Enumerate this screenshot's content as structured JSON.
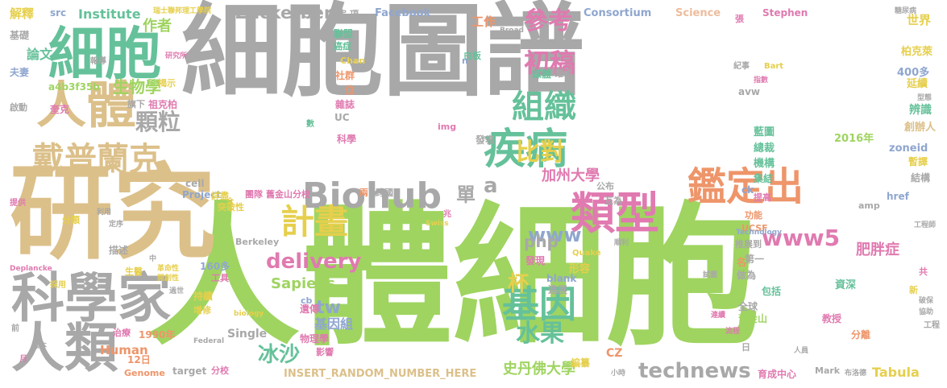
{
  "word_cloud": {
    "palette": {
      "gray": "#a8a8a8",
      "lime": "#9fd460",
      "teal": "#65c19a",
      "tan": "#dcc08a",
      "pink": "#e07ab0",
      "orange": "#ee956a",
      "yellow": "#e6cf4c",
      "blue": "#8fa6cf",
      "lightgreen": "#bfe08f",
      "peach": "#eebc9c"
    },
    "words": [
      {
        "text": "細胞圖譜",
        "color": "#a8a8a8"
      },
      {
        "text": "人體細胞",
        "color": "#9fd460"
      },
      {
        "text": "研究",
        "color": "#dcc08a"
      },
      {
        "text": "細胞",
        "color": "#65c19a"
      },
      {
        "text": "人體",
        "color": "#dcc08a"
      },
      {
        "text": "科學家",
        "color": "#a8a8a8"
      },
      {
        "text": "人類",
        "color": "#a8a8a8"
      },
      {
        "text": "疾病",
        "color": "#65c19a"
      },
      {
        "text": "類型",
        "color": "#e07ab0"
      },
      {
        "text": "Biohub",
        "color": "#a8a8a8"
      },
      {
        "text": "鑑定出",
        "color": "#ee956a"
      },
      {
        "text": "戴普蘭克",
        "color": "#dcc08a"
      },
      {
        "text": "計畫",
        "color": "#e6cf4c"
      },
      {
        "text": "基因",
        "color": "#65c19a"
      },
      {
        "text": "組織",
        "color": "#65c19a"
      },
      {
        "text": "初稿",
        "color": "#e07ab0"
      },
      {
        "text": "參考",
        "color": "#e07ab0"
      },
      {
        "text": "比對",
        "color": "#e6cf4c"
      },
      {
        "text": "顆粒",
        "color": "#a8a8a8"
      },
      {
        "text": "www5",
        "color": "#e07ab0"
      },
      {
        "text": "www",
        "color": "#8fa6cf"
      },
      {
        "text": "冰沙",
        "color": "#65c19a"
      },
      {
        "text": "水果",
        "color": "#65c19a"
      },
      {
        "text": "delivery",
        "color": "#e07ab0"
      },
      {
        "text": "technews",
        "color": "#a8a8a8"
      },
      {
        "text": "Zuckerberg",
        "color": "#a8a8a8"
      },
      {
        "text": "生物學",
        "color": "#9fd460"
      },
      {
        "text": "單",
        "color": "#a8a8a8"
      },
      {
        "text": "a",
        "color": "#a8a8a8"
      },
      {
        "text": "tw",
        "color": "#8fa6cf"
      },
      {
        "text": "杯",
        "color": "#e6cf4c"
      },
      {
        "text": "php",
        "color": "#a8a8a8"
      },
      {
        "text": "肥胖症",
        "color": "#e07ab0"
      },
      {
        "text": "史丹佛大學",
        "color": "#9fd460"
      },
      {
        "text": "加州大學",
        "color": "#e07ab0"
      },
      {
        "text": "Sapiens",
        "color": "#9fd460"
      },
      {
        "text": "基因組",
        "color": "#8fa6cf"
      },
      {
        "text": "Human",
        "color": "#ee956a"
      },
      {
        "text": "Tabula",
        "color": "#e6cf4c"
      },
      {
        "text": "Institute",
        "color": "#65c19a"
      },
      {
        "text": "論文",
        "color": "#65c19a"
      },
      {
        "text": "作者",
        "color": "#9fd460"
      },
      {
        "text": "解釋",
        "color": "#e6cf4c"
      },
      {
        "text": "工作",
        "color": "#ee956a"
      },
      {
        "text": "世界",
        "color": "#e6cf4c"
      },
      {
        "text": "Consortium",
        "color": "#8fa6cf"
      },
      {
        "text": "Facebook",
        "color": "#8fa6cf"
      },
      {
        "text": "Science",
        "color": "#eebc9c"
      },
      {
        "text": "Stephen",
        "color": "#e07ab0"
      },
      {
        "text": "2016年",
        "color": "#9fd460"
      },
      {
        "text": "400多",
        "color": "#8fa6cf"
      },
      {
        "text": "延續",
        "color": "#e6cf4c"
      },
      {
        "text": "辨識",
        "color": "#65c19a"
      },
      {
        "text": "創辦人",
        "color": "#dcc08a"
      },
      {
        "text": "zoneid",
        "color": "#8fa6cf"
      },
      {
        "text": "暫譯",
        "color": "#e6cf4c"
      },
      {
        "text": "結構",
        "color": "#a8a8a8"
      },
      {
        "text": "藍圖",
        "color": "#65c19a"
      },
      {
        "text": "總裁",
        "color": "#65c19a"
      },
      {
        "text": "機構",
        "color": "#65c19a"
      },
      {
        "text": "集結",
        "color": "#65c19a"
      },
      {
        "text": "href",
        "color": "#8fa6cf"
      },
      {
        "text": "提高",
        "color": "#e07ab0"
      },
      {
        "text": "功能",
        "color": "#ee956a"
      },
      {
        "text": "推展到",
        "color": "#a8a8a8"
      },
      {
        "text": "UCSF",
        "color": "#ee956a"
      },
      {
        "text": "名",
        "color": "#ee956a"
      },
      {
        "text": "第一",
        "color": "#a8a8a8"
      },
      {
        "text": "做為",
        "color": "#a8a8a8"
      },
      {
        "text": "包括",
        "color": "#65c19a"
      },
      {
        "text": "全球",
        "color": "#a8a8a8"
      },
      {
        "text": "舊金山",
        "color": "#9fd460"
      },
      {
        "text": "教授",
        "color": "#e07ab0"
      },
      {
        "text": "資深",
        "color": "#65c19a"
      },
      {
        "text": "分離",
        "color": "#ee956a"
      },
      {
        "text": "形容",
        "color": "#e6cf4c"
      },
      {
        "text": "發現",
        "color": "#e07ab0"
      },
      {
        "text": "進展",
        "color": "#a8a8a8"
      },
      {
        "text": "blank",
        "color": "#8fa6cf"
      },
      {
        "text": "CZ",
        "color": "#ee956a"
      },
      {
        "text": "編纂",
        "color": "#e6cf4c"
      },
      {
        "text": "INSERT_RANDOM_NUMBER_HERE",
        "color": "#dcc08a"
      },
      {
        "text": "育成中心",
        "color": "#e07ab0"
      },
      {
        "text": "Mark",
        "color": "#a8a8a8"
      },
      {
        "text": "target",
        "color": "#a8a8a8"
      },
      {
        "text": "分校",
        "color": "#e07ab0"
      },
      {
        "text": "12日",
        "color": "#ee956a"
      },
      {
        "text": "Genome",
        "color": "#ee956a"
      },
      {
        "text": "1990年",
        "color": "#ee956a"
      },
      {
        "text": "治療",
        "color": "#e07ab0"
      },
      {
        "text": "持續",
        "color": "#e6cf4c"
      },
      {
        "text": "增修",
        "color": "#e6cf4c"
      },
      {
        "text": "生醫",
        "color": "#e6cf4c"
      },
      {
        "text": "工具",
        "color": "#e07ab0"
      },
      {
        "text": "160多",
        "color": "#8fa6cf"
      },
      {
        "text": "描述",
        "color": "#a8a8a8"
      },
      {
        "text": "分類",
        "color": "#e6cf4c"
      },
      {
        "text": "Berkeley",
        "color": "#a8a8a8"
      },
      {
        "text": "Project",
        "color": "#8fa6cf"
      },
      {
        "text": "cell",
        "color": "#a8a8a8"
      },
      {
        "text": "團隊",
        "color": "#e07ab0"
      },
      {
        "text": "舊金山分校",
        "color": "#e07ab0"
      },
      {
        "text": "突破性",
        "color": "#e6cf4c"
      },
      {
        "text": "詳盡",
        "color": "#e6cf4c"
      },
      {
        "text": "Single",
        "color": "#a8a8a8"
      },
      {
        "text": "遺傳",
        "color": "#e07ab0"
      },
      {
        "text": "物理學",
        "color": "#e07ab0"
      },
      {
        "text": "跨國",
        "color": "#a8a8a8"
      },
      {
        "text": "影響",
        "color": "#e07ab0"
      },
      {
        "text": "公布",
        "color": "#a8a8a8"
      },
      {
        "text": "互為",
        "color": "#a8a8a8"
      },
      {
        "text": "ck",
        "color": "#8fa6cf"
      },
      {
        "text": "發表",
        "color": "#a8a8a8"
      },
      {
        "text": "雜誌",
        "color": "#e07ab0"
      },
      {
        "text": "社群",
        "color": "#ee956a"
      },
      {
        "text": "位",
        "color": "#ee956a"
      },
      {
        "text": "科學",
        "color": "#e07ab0"
      },
      {
        "text": "UC",
        "color": "#a8a8a8"
      },
      {
        "text": "Chan",
        "color": "#e6cf4c"
      },
      {
        "text": "聯盟",
        "color": "#65c19a"
      },
      {
        "text": "癌症",
        "color": "#65c19a"
      },
      {
        "text": "白板",
        "color": "#65c19a"
      },
      {
        "text": "媒體",
        "color": "#65c19a"
      },
      {
        "text": "確切",
        "color": "#a8a8a8"
      },
      {
        "text": "鑑定",
        "color": "#a8a8a8"
      },
      {
        "text": "項",
        "color": "#a8a8a8"
      },
      {
        "text": "src",
        "color": "#8fa6cf"
      },
      {
        "text": "基礎",
        "color": "#a8a8a8"
      },
      {
        "text": "夫妻",
        "color": "#8fa6cf"
      },
      {
        "text": "a4b3f35b",
        "color": "#9fd460"
      },
      {
        "text": "揭示",
        "color": "#e6cf4c"
      },
      {
        "text": "啟動",
        "color": "#a8a8a8"
      },
      {
        "text": "奎克",
        "color": "#e07ab0"
      },
      {
        "text": "旗下",
        "color": "#a8a8a8"
      },
      {
        "text": "祖克柏",
        "color": "#e07ab0"
      },
      {
        "text": "柏克萊",
        "color": "#e6cf4c"
      },
      {
        "text": "amp",
        "color": "#a8a8a8"
      },
      {
        "text": "Quake",
        "color": "#e6cf4c"
      },
      {
        "text": "img",
        "color": "#e07ab0"
      },
      {
        "text": "兆",
        "color": "#e07ab0"
      },
      {
        "text": "數",
        "color": "#65c19a"
      },
      {
        "text": "瑞士聯邦理工學院",
        "color": "#e6cf4c"
      },
      {
        "text": "Broad",
        "color": "#a8a8a8"
      },
      {
        "text": "糖尿病",
        "color": "#a8a8a8"
      },
      {
        "text": "紀事",
        "color": "#a8a8a8"
      },
      {
        "text": "Bart",
        "color": "#e6cf4c"
      },
      {
        "text": "張",
        "color": "#e07ab0"
      },
      {
        "text": "avw",
        "color": "#a8a8a8"
      },
      {
        "text": "biology",
        "color": "#e6cf4c"
      },
      {
        "text": "Federal",
        "color": "#a8a8a8"
      },
      {
        "text": "Deplancke",
        "color": "#e07ab0"
      },
      {
        "text": "採用",
        "color": "#e6cf4c"
      },
      {
        "text": "工程師",
        "color": "#a8a8a8"
      },
      {
        "text": "Technology",
        "color": "#8fa6cf"
      },
      {
        "text": "Swiss",
        "color": "#e6cf4c"
      },
      {
        "text": "共",
        "color": "#e07ab0"
      },
      {
        "text": "新",
        "color": "#e6cf4c"
      },
      {
        "text": "破保",
        "color": "#a8a8a8"
      },
      {
        "text": "協助",
        "color": "#a8a8a8"
      },
      {
        "text": "工程",
        "color": "#a8a8a8"
      },
      {
        "text": "日",
        "color": "#a8a8a8"
      },
      {
        "text": "前",
        "color": "#a8a8a8"
      },
      {
        "text": "月",
        "color": "#e07ab0"
      },
      {
        "text": "樣本",
        "color": "#a8a8a8"
      },
      {
        "text": "提供",
        "color": "#e07ab0"
      },
      {
        "text": "利用",
        "color": "#a8a8a8"
      },
      {
        "text": "報導",
        "color": "#a8a8a8"
      },
      {
        "text": "研究所",
        "color": "#e07ab0"
      },
      {
        "text": "小時",
        "color": "#a8a8a8"
      },
      {
        "text": "布洛德",
        "color": "#a8a8a8"
      },
      {
        "text": "n",
        "color": "#8fa6cf"
      },
      {
        "text": "cb",
        "color": "#8fa6cf"
      },
      {
        "text": "兩",
        "color": "#ee956a"
      },
      {
        "text": "全",
        "color": "#e6cf4c"
      },
      {
        "text": "革命性",
        "color": "#e6cf4c"
      },
      {
        "text": "開創性",
        "color": "#e6cf4c"
      },
      {
        "text": "中",
        "color": "#a8a8a8"
      },
      {
        "text": "過世",
        "color": "#a8a8a8"
      },
      {
        "text": "順利",
        "color": "#a8a8a8"
      },
      {
        "text": "人員",
        "color": "#a8a8a8"
      },
      {
        "text": "試圖",
        "color": "#a8a8a8"
      },
      {
        "text": "流程",
        "color": "#e07ab0"
      },
      {
        "text": "連續",
        "color": "#e07ab0"
      },
      {
        "text": "定序",
        "color": "#a8a8a8"
      },
      {
        "text": "指數",
        "color": "#e07ab0"
      },
      {
        "text": "型態",
        "color": "#a8a8a8"
      }
    ]
  }
}
